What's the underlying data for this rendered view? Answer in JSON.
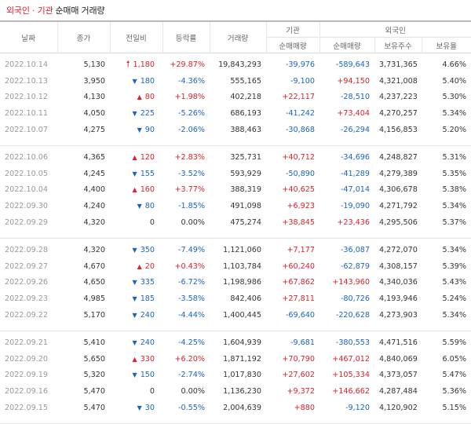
{
  "header": {
    "title_red": "외국인 · 기관",
    "title_dark": "순매매 거래량"
  },
  "columns": {
    "date": "날짜",
    "close": "종가",
    "change": "전일비",
    "rate": "등락률",
    "volume": "거래량",
    "inst": "기관",
    "foreign": "외국인",
    "inst_net": "순매매량",
    "foreign_net": "순매매량",
    "holdings": "보유주수",
    "ratio": "보유율"
  },
  "rows": [
    {
      "date": "2022.10.14",
      "close": "5,130",
      "arrow": "up-big",
      "change": "1,180",
      "rate": "+29.87%",
      "volume": "19,843,293",
      "inst": "-39,976",
      "foreign": "-589,643",
      "holdings": "3,731,365",
      "ratio": "4.66%"
    },
    {
      "date": "2022.10.13",
      "close": "3,950",
      "arrow": "down",
      "change": "180",
      "rate": "-4.36%",
      "volume": "555,165",
      "inst": "-9,100",
      "foreign": "+94,150",
      "holdings": "4,321,008",
      "ratio": "5.40%"
    },
    {
      "date": "2022.10.12",
      "close": "4,130",
      "arrow": "up",
      "change": "80",
      "rate": "+1.98%",
      "volume": "402,218",
      "inst": "+22,117",
      "foreign": "-28,510",
      "holdings": "4,237,223",
      "ratio": "5.30%"
    },
    {
      "date": "2022.10.11",
      "close": "4,050",
      "arrow": "down",
      "change": "225",
      "rate": "-5.26%",
      "volume": "686,193",
      "inst": "-41,242",
      "foreign": "+73,404",
      "holdings": "4,270,257",
      "ratio": "5.34%"
    },
    {
      "date": "2022.10.07",
      "close": "4,275",
      "arrow": "down",
      "change": "90",
      "rate": "-2.06%",
      "volume": "388,463",
      "inst": "-30,868",
      "foreign": "-26,294",
      "holdings": "4,156,853",
      "ratio": "5.20%"
    },
    {
      "date": "2022.10.06",
      "close": "4,365",
      "arrow": "up",
      "change": "120",
      "rate": "+2.83%",
      "volume": "325,731",
      "inst": "+40,712",
      "foreign": "-34,696",
      "holdings": "4,248,827",
      "ratio": "5.31%"
    },
    {
      "date": "2022.10.05",
      "close": "4,245",
      "arrow": "down",
      "change": "155",
      "rate": "-3.52%",
      "volume": "593,929",
      "inst": "-50,890",
      "foreign": "-41,289",
      "holdings": "4,279,389",
      "ratio": "5.35%"
    },
    {
      "date": "2022.10.04",
      "close": "4,400",
      "arrow": "up",
      "change": "160",
      "rate": "+3.77%",
      "volume": "388,319",
      "inst": "+40,625",
      "foreign": "-47,014",
      "holdings": "4,306,678",
      "ratio": "5.38%"
    },
    {
      "date": "2022.09.30",
      "close": "4,240",
      "arrow": "down",
      "change": "80",
      "rate": "-1.85%",
      "volume": "491,098",
      "inst": "+6,923",
      "foreign": "-19,090",
      "holdings": "4,271,792",
      "ratio": "5.34%"
    },
    {
      "date": "2022.09.29",
      "close": "4,320",
      "arrow": "none",
      "change": "0",
      "rate": "0.00%",
      "volume": "475,274",
      "inst": "+38,845",
      "foreign": "+23,436",
      "holdings": "4,295,506",
      "ratio": "5.37%"
    },
    {
      "date": "2022.09.28",
      "close": "4,320",
      "arrow": "down",
      "change": "350",
      "rate": "-7.49%",
      "volume": "1,121,060",
      "inst": "+7,177",
      "foreign": "-36,087",
      "holdings": "4,272,070",
      "ratio": "5.34%"
    },
    {
      "date": "2022.09.27",
      "close": "4,670",
      "arrow": "up",
      "change": "20",
      "rate": "+0.43%",
      "volume": "1,103,784",
      "inst": "+60,240",
      "foreign": "-62,879",
      "holdings": "4,308,157",
      "ratio": "5.39%"
    },
    {
      "date": "2022.09.26",
      "close": "4,650",
      "arrow": "down",
      "change": "335",
      "rate": "-6.72%",
      "volume": "1,198,986",
      "inst": "+67,862",
      "foreign": "+143,960",
      "holdings": "4,340,036",
      "ratio": "5.43%"
    },
    {
      "date": "2022.09.23",
      "close": "4,985",
      "arrow": "down",
      "change": "185",
      "rate": "-3.58%",
      "volume": "842,406",
      "inst": "+27,811",
      "foreign": "-80,726",
      "holdings": "4,193,946",
      "ratio": "5.24%"
    },
    {
      "date": "2022.09.22",
      "close": "5,170",
      "arrow": "down",
      "change": "240",
      "rate": "-4.44%",
      "volume": "1,400,445",
      "inst": "-69,640",
      "foreign": "-220,628",
      "holdings": "4,273,903",
      "ratio": "5.34%"
    },
    {
      "date": "2022.09.21",
      "close": "5,410",
      "arrow": "down",
      "change": "240",
      "rate": "-4.25%",
      "volume": "1,604,939",
      "inst": "-9,681",
      "foreign": "-380,553",
      "holdings": "4,471,516",
      "ratio": "5.59%"
    },
    {
      "date": "2022.09.20",
      "close": "5,650",
      "arrow": "up",
      "change": "330",
      "rate": "+6.20%",
      "volume": "1,871,192",
      "inst": "+70,790",
      "foreign": "+467,012",
      "holdings": "4,840,069",
      "ratio": "6.05%"
    },
    {
      "date": "2022.09.19",
      "close": "5,320",
      "arrow": "down",
      "change": "150",
      "rate": "-2.74%",
      "volume": "1,017,830",
      "inst": "+27,602",
      "foreign": "+105,334",
      "holdings": "4,373,057",
      "ratio": "5.47%"
    },
    {
      "date": "2022.09.16",
      "close": "5,470",
      "arrow": "none",
      "change": "0",
      "rate": "0.00%",
      "volume": "1,136,230",
      "inst": "+9,372",
      "foreign": "+146,662",
      "holdings": "4,287,484",
      "ratio": "5.36%"
    },
    {
      "date": "2022.09.15",
      "close": "5,470",
      "arrow": "down",
      "change": "30",
      "rate": "-0.55%",
      "volume": "2,004,639",
      "inst": "+880",
      "foreign": "-9,120",
      "holdings": "4,120,902",
      "ratio": "5.15%"
    }
  ],
  "colors": {
    "up": "#e0202a",
    "down": "#1a63c6"
  },
  "icons": {
    "up": "triangle-up-icon",
    "up-big": "arrow-up-icon",
    "down": "triangle-down-icon"
  }
}
